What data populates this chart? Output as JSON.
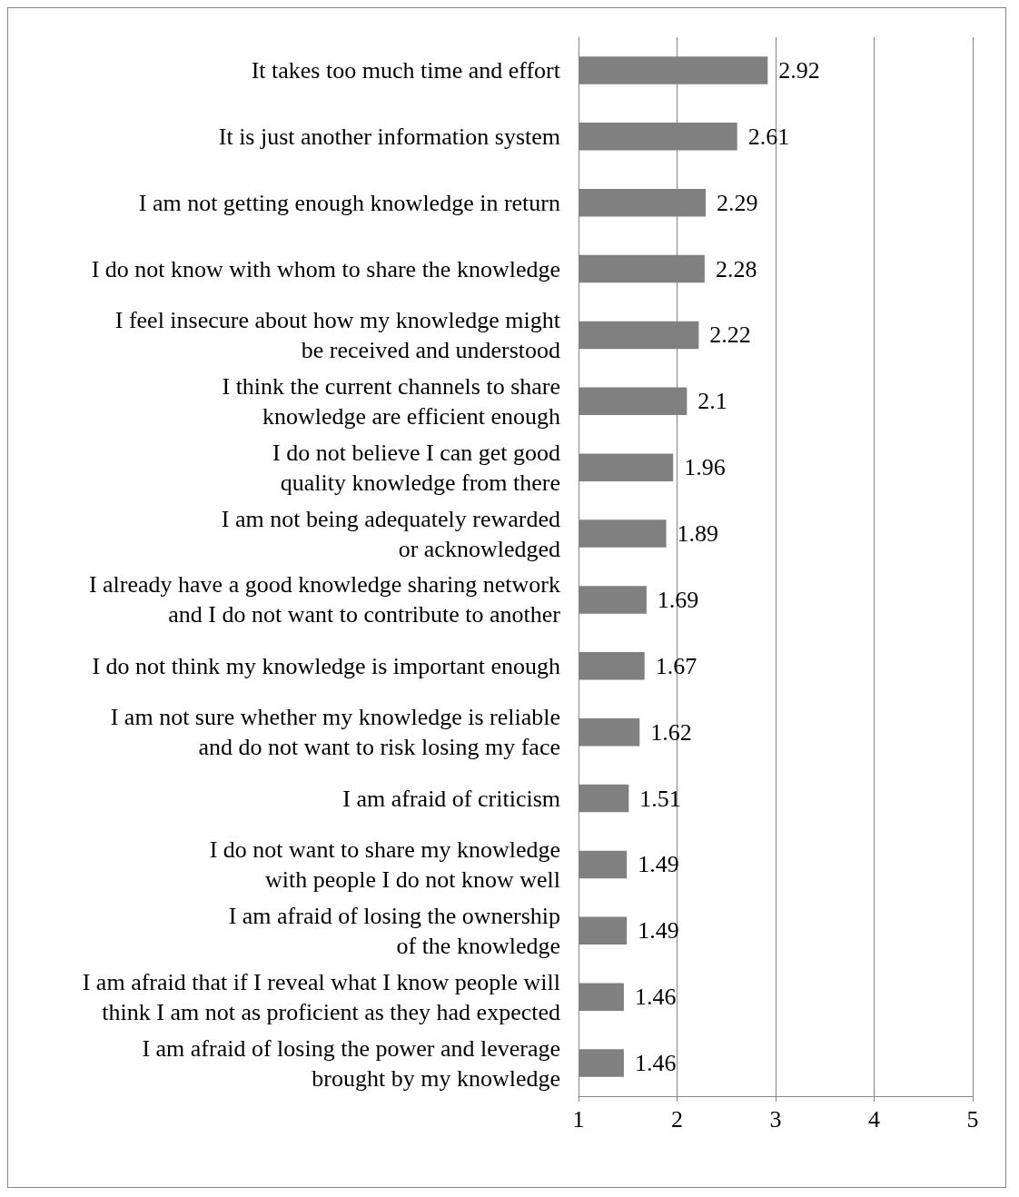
{
  "chart_data": {
    "type": "bar",
    "orientation": "horizontal",
    "categories": [
      "It takes too much time and effort",
      "It is just another information system",
      "I am not getting enough knowledge in return",
      "I do not know with whom to share the knowledge",
      "I feel insecure about how my knowledge might\nbe received and understood",
      "I think the current channels to share\nknowledge are efficient enough",
      "I do not believe I can get good\nquality knowledge from there",
      "I am not being adequately rewarded\nor acknowledged",
      "I already have a good knowledge sharing network\nand I do not want to contribute to another",
      "I do not think my knowledge is important enough",
      "I am not sure whether my knowledge is reliable\nand do not want to risk losing my face",
      "I am afraid of criticism",
      "I do not want to share my knowledge\nwith people I do not know well",
      "I am afraid of losing the ownership\nof the knowledge",
      "I am afraid that if I reveal what I know people will\nthink I am not as proficient as they had expected",
      "I am afraid of losing the power and leverage\nbrought by my knowledge"
    ],
    "values": [
      2.92,
      2.61,
      2.29,
      2.28,
      2.22,
      2.1,
      1.96,
      1.89,
      1.69,
      1.67,
      1.62,
      1.51,
      1.49,
      1.49,
      1.46,
      1.46
    ],
    "color": "#808080",
    "xlim": [
      1,
      5
    ],
    "xticks": [
      1,
      2,
      3,
      4,
      5
    ],
    "grid": "x",
    "data_labels": true
  }
}
